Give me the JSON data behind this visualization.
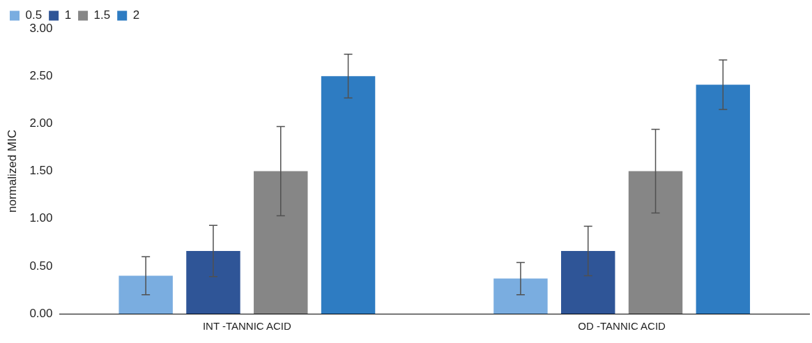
{
  "chart_data": {
    "type": "bar",
    "ylabel": "normalized MIC",
    "categories": [
      "INT -TANNIC ACID",
      "OD -TANNIC ACID"
    ],
    "series": [
      {
        "name": "0.5",
        "color": "#7aade0",
        "values": [
          0.4,
          0.37
        ],
        "errors": [
          0.2,
          0.17
        ]
      },
      {
        "name": "1",
        "color": "#2f5597",
        "values": [
          0.66,
          0.66
        ],
        "errors": [
          0.27,
          0.26
        ]
      },
      {
        "name": "1.5",
        "color": "#868686",
        "values": [
          1.5,
          1.5
        ],
        "errors": [
          0.47,
          0.44
        ]
      },
      {
        "name": "2",
        "color": "#2e7cc2",
        "values": [
          2.5,
          2.41
        ],
        "errors": [
          0.23,
          0.26
        ]
      }
    ],
    "ylim": [
      0,
      3
    ],
    "yticks": [
      {
        "value": 0,
        "label": "0.00"
      },
      {
        "value": 0.5,
        "label": "0.50"
      },
      {
        "value": 1,
        "label": "1.00"
      },
      {
        "value": 1.5,
        "label": "1.50"
      },
      {
        "value": 2,
        "label": "2.00"
      },
      {
        "value": 2.5,
        "label": "2.50"
      },
      {
        "value": 3,
        "label": "3.00"
      }
    ],
    "grid": false,
    "legend": "top left"
  }
}
